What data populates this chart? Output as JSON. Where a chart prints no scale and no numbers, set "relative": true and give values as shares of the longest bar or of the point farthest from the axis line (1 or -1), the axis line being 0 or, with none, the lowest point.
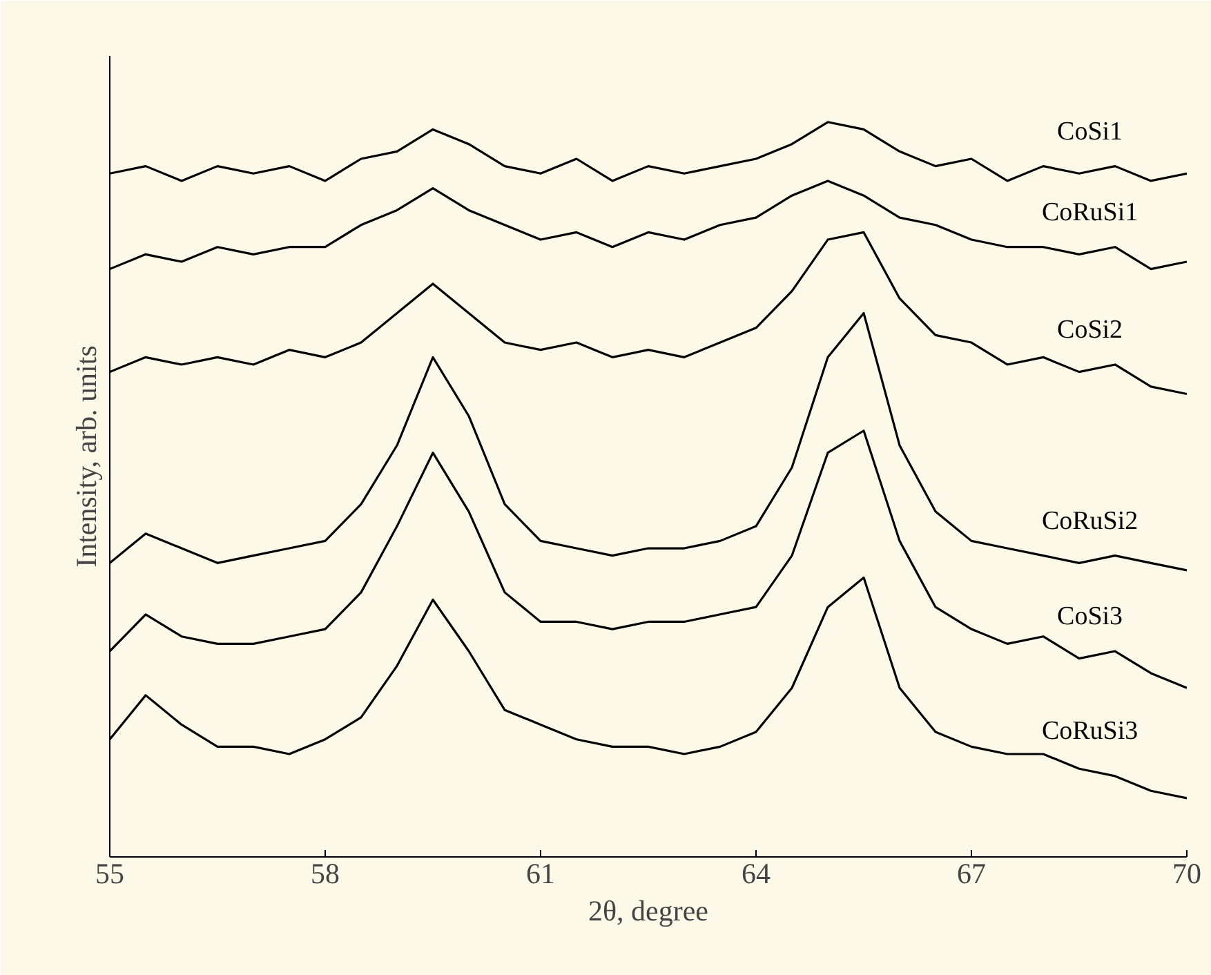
{
  "chart_data": {
    "type": "line",
    "relative": true,
    "xlabel": "2θ, degree",
    "ylabel": "Intensity, arb. units",
    "xlim": [
      55,
      70
    ],
    "xticks": [
      55,
      58,
      61,
      64,
      67,
      70
    ],
    "grid": false,
    "x": [
      55,
      55.5,
      56,
      56.5,
      57,
      57.5,
      58,
      58.5,
      59,
      59.5,
      60,
      60.5,
      61,
      61.5,
      62,
      62.5,
      63,
      63.5,
      64,
      64.5,
      65,
      65.5,
      66,
      66.5,
      67,
      67.5,
      68,
      68.5,
      69,
      69.5,
      70
    ],
    "series": [
      {
        "name": "CoSi1",
        "color": "#000000",
        "values": [
          0.93,
          0.94,
          0.92,
          0.94,
          0.93,
          0.94,
          0.92,
          0.95,
          0.96,
          0.99,
          0.97,
          0.94,
          0.93,
          0.95,
          0.92,
          0.94,
          0.93,
          0.94,
          0.95,
          0.97,
          1.0,
          0.99,
          0.96,
          0.94,
          0.95,
          0.92,
          0.94,
          0.93,
          0.94,
          0.92,
          0.93
        ]
      },
      {
        "name": "CoRuSi1",
        "color": "#000000",
        "values": [
          0.8,
          0.82,
          0.81,
          0.83,
          0.82,
          0.83,
          0.83,
          0.86,
          0.88,
          0.91,
          0.88,
          0.86,
          0.84,
          0.85,
          0.83,
          0.85,
          0.84,
          0.86,
          0.87,
          0.9,
          0.92,
          0.9,
          0.87,
          0.86,
          0.84,
          0.83,
          0.83,
          0.82,
          0.83,
          0.8,
          0.81
        ]
      },
      {
        "name": "CoSi2",
        "color": "#000000",
        "values": [
          0.66,
          0.68,
          0.67,
          0.68,
          0.67,
          0.69,
          0.68,
          0.7,
          0.74,
          0.78,
          0.74,
          0.7,
          0.69,
          0.7,
          0.68,
          0.69,
          0.68,
          0.7,
          0.72,
          0.77,
          0.84,
          0.85,
          0.76,
          0.71,
          0.7,
          0.67,
          0.68,
          0.66,
          0.67,
          0.64,
          0.63
        ]
      },
      {
        "name": "CoRuSi2",
        "color": "#000000",
        "values": [
          0.4,
          0.44,
          0.42,
          0.4,
          0.41,
          0.42,
          0.43,
          0.48,
          0.56,
          0.68,
          0.6,
          0.48,
          0.43,
          0.42,
          0.41,
          0.42,
          0.42,
          0.43,
          0.45,
          0.53,
          0.68,
          0.74,
          0.56,
          0.47,
          0.43,
          0.42,
          0.41,
          0.4,
          0.41,
          0.4,
          0.39
        ]
      },
      {
        "name": "CoSi3",
        "color": "#000000",
        "values": [
          0.28,
          0.33,
          0.3,
          0.29,
          0.29,
          0.3,
          0.31,
          0.36,
          0.45,
          0.55,
          0.47,
          0.36,
          0.32,
          0.32,
          0.31,
          0.32,
          0.32,
          0.33,
          0.34,
          0.41,
          0.55,
          0.58,
          0.43,
          0.34,
          0.31,
          0.29,
          0.3,
          0.27,
          0.28,
          0.25,
          0.23
        ]
      },
      {
        "name": "CoRuSi3",
        "color": "#000000",
        "values": [
          0.16,
          0.22,
          0.18,
          0.15,
          0.15,
          0.14,
          0.16,
          0.19,
          0.26,
          0.35,
          0.28,
          0.2,
          0.18,
          0.16,
          0.15,
          0.15,
          0.14,
          0.15,
          0.17,
          0.23,
          0.34,
          0.38,
          0.23,
          0.17,
          0.15,
          0.14,
          0.14,
          0.12,
          0.11,
          0.09,
          0.08
        ]
      }
    ]
  }
}
